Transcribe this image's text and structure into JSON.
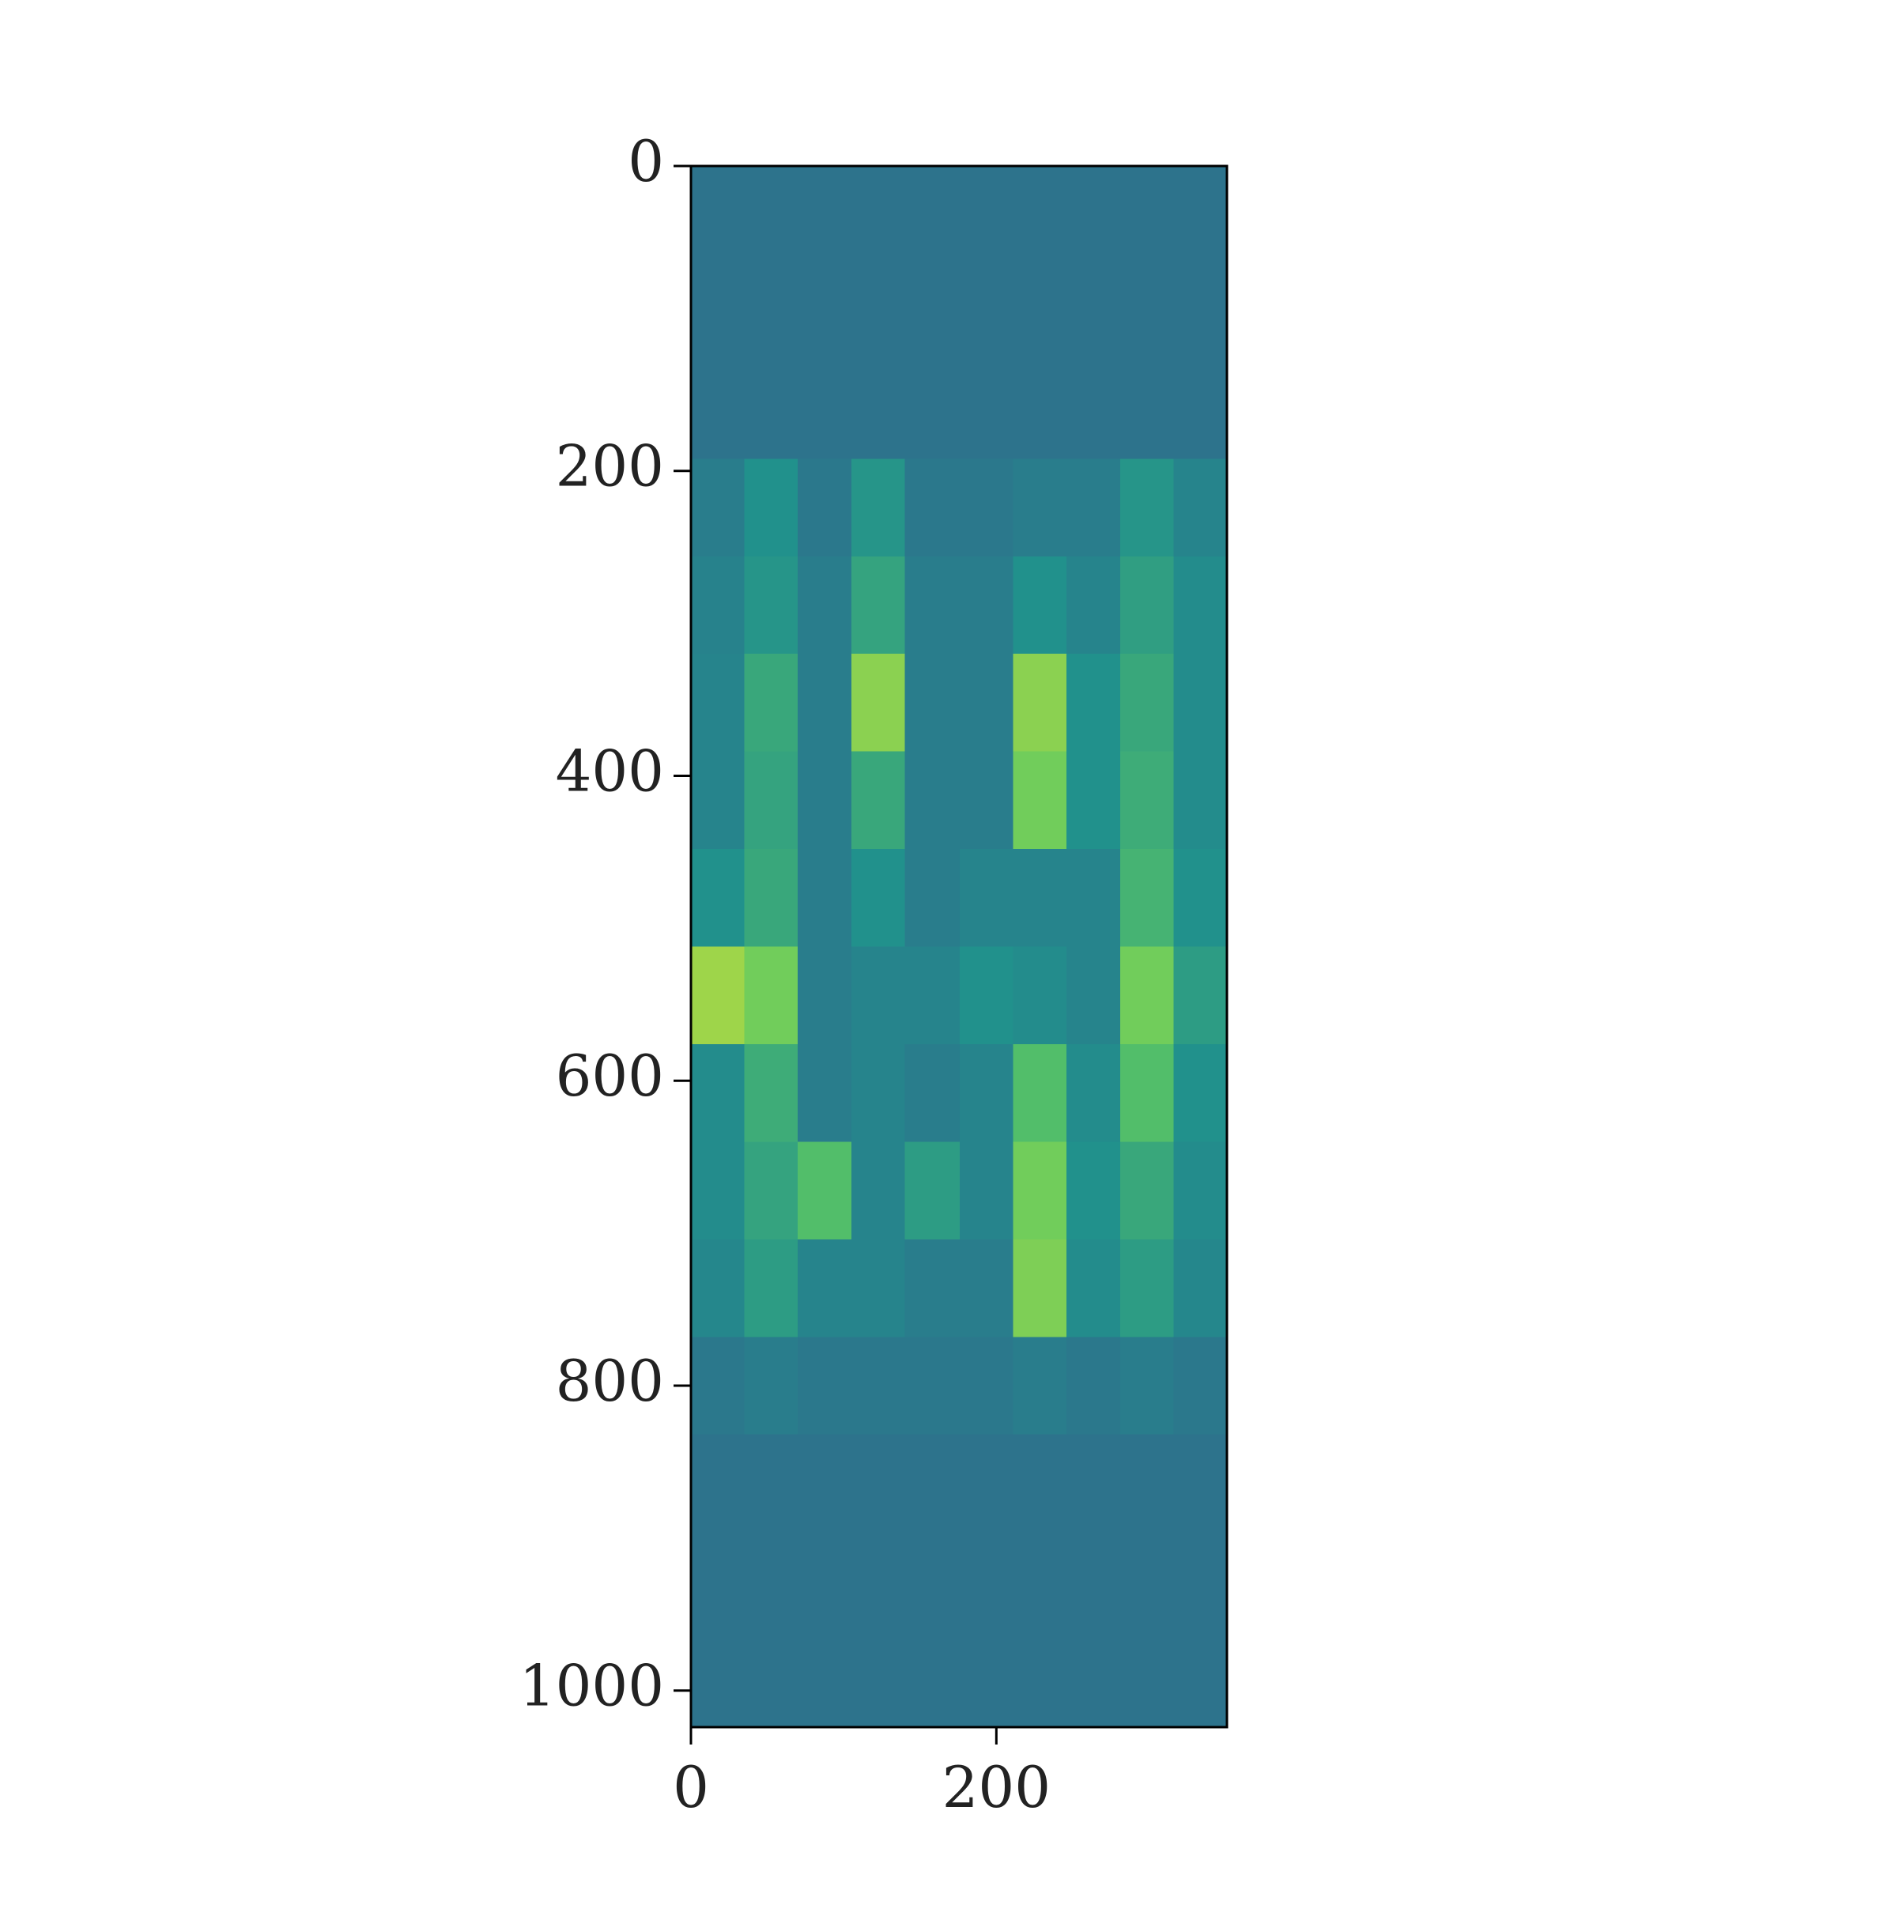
{
  "chart_data": {
    "type": "heatmap",
    "colormap": "viridis",
    "x_edges": [
      0,
      35,
      70,
      105,
      140,
      176,
      211,
      246,
      281,
      316,
      351
    ],
    "y_edges": [
      0,
      64,
      128,
      192,
      256,
      320,
      384,
      448,
      512,
      576,
      640,
      704,
      768,
      832,
      896,
      960,
      1024
    ],
    "values": [
      [
        0.38,
        0.38,
        0.38,
        0.38,
        0.38,
        0.38,
        0.38,
        0.38,
        0.38,
        0.38
      ],
      [
        0.38,
        0.38,
        0.38,
        0.38,
        0.38,
        0.38,
        0.38,
        0.38,
        0.38,
        0.38
      ],
      [
        0.38,
        0.38,
        0.38,
        0.38,
        0.38,
        0.38,
        0.38,
        0.38,
        0.38,
        0.38
      ],
      [
        0.42,
        0.5,
        0.4,
        0.52,
        0.4,
        0.4,
        0.42,
        0.42,
        0.52,
        0.45
      ],
      [
        0.44,
        0.52,
        0.42,
        0.58,
        0.42,
        0.42,
        0.5,
        0.45,
        0.56,
        0.48
      ],
      [
        0.45,
        0.6,
        0.42,
        0.82,
        0.42,
        0.42,
        0.82,
        0.5,
        0.6,
        0.48
      ],
      [
        0.45,
        0.58,
        0.42,
        0.6,
        0.42,
        0.42,
        0.78,
        0.5,
        0.62,
        0.48
      ],
      [
        0.5,
        0.6,
        0.42,
        0.5,
        0.42,
        0.45,
        0.45,
        0.45,
        0.65,
        0.5
      ],
      [
        0.85,
        0.78,
        0.42,
        0.45,
        0.45,
        0.5,
        0.48,
        0.45,
        0.78,
        0.55
      ],
      [
        0.48,
        0.62,
        0.42,
        0.45,
        0.42,
        0.45,
        0.7,
        0.48,
        0.7,
        0.5
      ],
      [
        0.48,
        0.58,
        0.7,
        0.45,
        0.55,
        0.45,
        0.78,
        0.5,
        0.6,
        0.48
      ],
      [
        0.46,
        0.55,
        0.45,
        0.45,
        0.42,
        0.42,
        0.8,
        0.48,
        0.55,
        0.46
      ],
      [
        0.4,
        0.42,
        0.4,
        0.4,
        0.4,
        0.4,
        0.42,
        0.4,
        0.42,
        0.4
      ],
      [
        0.38,
        0.38,
        0.38,
        0.38,
        0.38,
        0.38,
        0.38,
        0.38,
        0.38,
        0.38
      ],
      [
        0.38,
        0.38,
        0.38,
        0.38,
        0.38,
        0.38,
        0.38,
        0.38,
        0.38,
        0.38
      ],
      [
        0.38,
        0.38,
        0.38,
        0.38,
        0.38,
        0.38,
        0.38,
        0.38,
        0.38,
        0.38
      ]
    ],
    "xlim": [
      0,
      351
    ],
    "ylim": [
      1024,
      0
    ],
    "xticks": [
      0,
      200
    ],
    "yticks": [
      0,
      200,
      400,
      600,
      800,
      1000
    ]
  }
}
